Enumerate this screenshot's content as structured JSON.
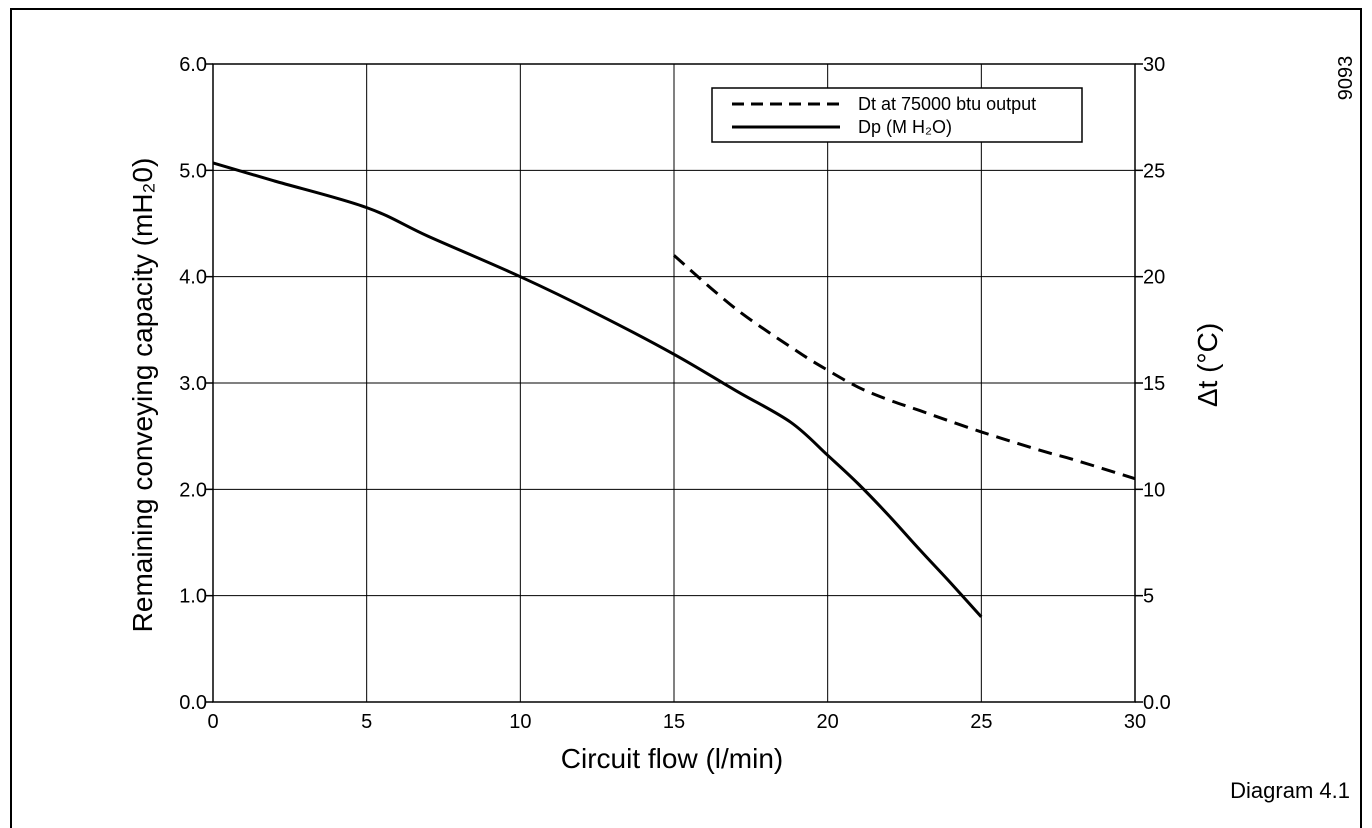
{
  "page": {
    "side_code": "9093",
    "caption": "Diagram 4.1"
  },
  "chart_data": {
    "type": "line",
    "title": "",
    "xlabel": "Circuit flow (l/min)",
    "ylabel": "Remaining conveying capacity  (mH₂0)",
    "y2label": "Δt (°C)",
    "xlim": [
      0,
      30
    ],
    "ylim": [
      0,
      6
    ],
    "y2lim": [
      0,
      30
    ],
    "x_ticks": [
      "0",
      "5",
      "10",
      "15",
      "20",
      "25",
      "30"
    ],
    "y_ticks": [
      "0.0",
      "1.0",
      "2.0",
      "3.0",
      "4.0",
      "5.0",
      "6.0"
    ],
    "y2_ticks": [
      "0.0",
      "5",
      "10",
      "15",
      "20",
      "25",
      "30"
    ],
    "grid": true,
    "legend_position": "top-right",
    "series": [
      {
        "name": "Dt at 75000 btu output",
        "axis": "right",
        "style": "dashed",
        "color": "#000000",
        "x": [
          15,
          17,
          19,
          20,
          21,
          22,
          23,
          25,
          27,
          28,
          30
        ],
        "y": [
          21,
          18.5,
          16.5,
          15.6,
          14.8,
          14.2,
          13.7,
          12.7,
          11.8,
          11.4,
          10.5
        ]
      },
      {
        "name": "Dp (M H₂O)",
        "axis": "left",
        "style": "solid",
        "color": "#000000",
        "x": [
          0,
          2,
          5,
          7,
          10,
          12.5,
          15,
          17,
          18.8,
          20,
          21,
          22,
          23,
          24,
          25
        ],
        "y": [
          5.07,
          4.9,
          4.65,
          4.38,
          4.0,
          3.65,
          3.27,
          2.93,
          2.63,
          2.32,
          2.05,
          1.75,
          1.43,
          1.12,
          0.8
        ]
      }
    ]
  }
}
